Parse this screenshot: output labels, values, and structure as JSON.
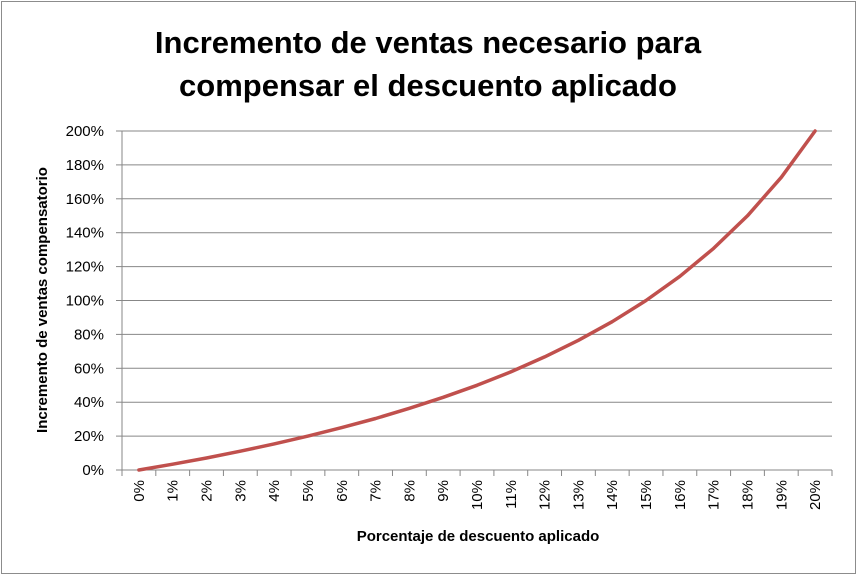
{
  "chart_data": {
    "type": "line",
    "title_lines": [
      "Incremento de ventas necesario para",
      "compensar el descuento aplicado"
    ],
    "xlabel": "Porcentaje de descuento aplicado",
    "ylabel": "Incremento de ventas compensatorio",
    "categories": [
      "0%",
      "1%",
      "2%",
      "3%",
      "4%",
      "5%",
      "6%",
      "7%",
      "8%",
      "9%",
      "10%",
      "11%",
      "12%",
      "13%",
      "14%",
      "15%",
      "16%",
      "17%",
      "18%",
      "19%",
      "20%"
    ],
    "y_tick_labels": [
      "0%",
      "20%",
      "40%",
      "60%",
      "80%",
      "100%",
      "120%",
      "140%",
      "160%",
      "180%",
      "200%"
    ],
    "ylim": [
      0,
      200
    ],
    "y_unit": "%",
    "grid": true,
    "legend": "none",
    "series": [
      {
        "color": "#c0504d",
        "values": [
          0,
          3.4,
          7.1,
          11.1,
          15.4,
          20.0,
          25.0,
          30.4,
          36.4,
          42.9,
          50.0,
          57.9,
          66.7,
          76.5,
          87.5,
          100.0,
          114.3,
          130.8,
          150.0,
          172.7,
          200.0
        ]
      }
    ],
    "colors": {
      "frame": "#8c8c8c",
      "grid": "#878787",
      "axis": "#878787"
    }
  }
}
